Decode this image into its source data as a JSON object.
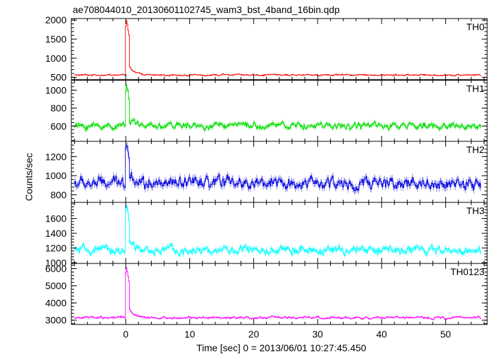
{
  "chart_data": {
    "type": "line",
    "title": "ae708044010_20130601102745_wam3_bst_4band_16bin.qdp",
    "xlabel": "Time [sec] 0 = 2013/06/01 10:27:45.450",
    "ylabel": "Counts/sec",
    "xlim": [
      -8.5,
      56.5
    ],
    "x_ticks": [
      0,
      10,
      20,
      30,
      40,
      50
    ],
    "x_tick_labels": [
      "0",
      "10",
      "20",
      "30",
      "40",
      "50"
    ],
    "grid": false,
    "sampling": {
      "t_start": -8,
      "t_end": 55.6,
      "step": 0.125
    },
    "panels": [
      {
        "name": "TH0",
        "color": "#ff0000",
        "ylim": [
          440,
          2040
        ],
        "y_ticks": [
          500,
          1000,
          1500,
          2000
        ],
        "y_tick_labels": [
          "500",
          "1000",
          "1500",
          "2000"
        ],
        "baseline": 560,
        "noise": 28,
        "peak": 2000,
        "peak_time": 0.15
      },
      {
        "name": "TH1",
        "color": "#00dd00",
        "ylim": [
          430,
          1110
        ],
        "y_ticks": [
          600,
          800,
          1000
        ],
        "y_tick_labels": [
          "600",
          "800",
          "1000"
        ],
        "baseline": 600,
        "noise": 50,
        "peak": 1060,
        "peak_time": 0.15
      },
      {
        "name": "TH2",
        "color": "#0000dd",
        "ylim": [
          720,
          1360
        ],
        "y_ticks": [
          800,
          1000,
          1200
        ],
        "y_tick_labels": [
          "800",
          "1000",
          "1200"
        ],
        "baseline": 920,
        "noise": 80,
        "peak": 1340,
        "peak_time": 0.15
      },
      {
        "name": "TH3",
        "color": "#00ffff",
        "ylim": [
          990,
          1820
        ],
        "y_ticks": [
          1000,
          1200,
          1400,
          1600
        ],
        "y_tick_labels": [
          "1000",
          "1200",
          "1400",
          "1600"
        ],
        "baseline": 1170,
        "noise": 70,
        "peak": 1760,
        "peak_time": 0.15
      },
      {
        "name": "TH0123",
        "color": "#ff00ff",
        "ylim": [
          2750,
          6300
        ],
        "y_ticks": [
          3000,
          4000,
          5000,
          6000
        ],
        "y_tick_labels": [
          "3000",
          "4000",
          "5000",
          "6000"
        ],
        "baseline": 3150,
        "noise": 90,
        "peak": 6100,
        "peak_time": 0.15
      }
    ]
  }
}
